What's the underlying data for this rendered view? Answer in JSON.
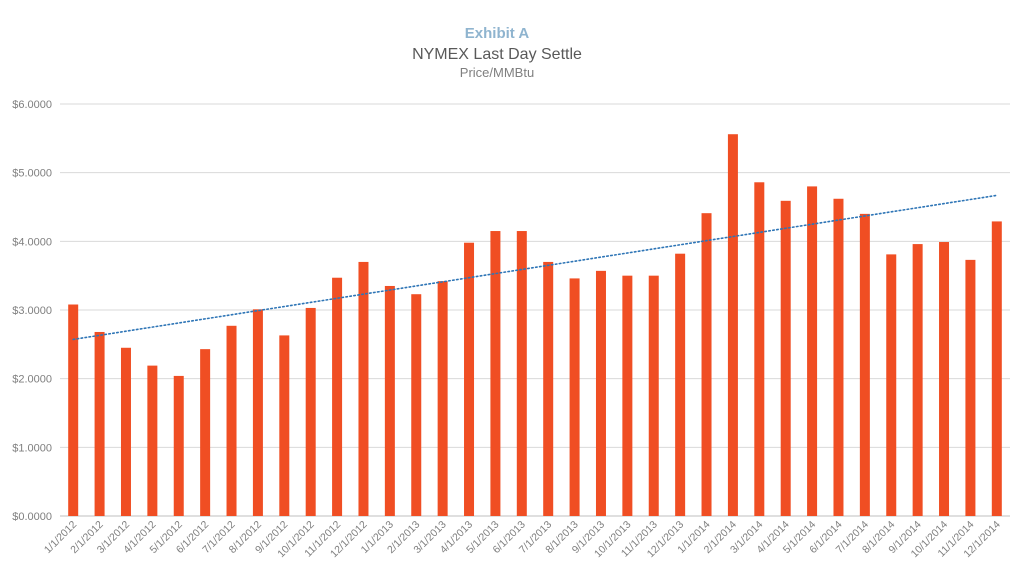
{
  "chart_data": {
    "type": "bar",
    "exhibit": "Exhibit A",
    "title": "NYMEX Last Day Settle",
    "subtitle": "Price/MMBtu",
    "bar_color": "#f04e23",
    "trendline_color": "#2e75b6",
    "trendline": "linear",
    "grid": true,
    "legend": "none",
    "ylim": [
      0,
      6
    ],
    "y_ticks": [
      "$0.0000",
      "$1.0000",
      "$2.0000",
      "$3.0000",
      "$4.0000",
      "$5.0000",
      "$6.0000"
    ],
    "categories": [
      "1/1/2012",
      "2/1/2012",
      "3/1/2012",
      "4/1/2012",
      "5/1/2012",
      "6/1/2012",
      "7/1/2012",
      "8/1/2012",
      "9/1/2012",
      "10/1/2012",
      "11/1/2012",
      "12/1/2012",
      "1/1/2013",
      "2/1/2013",
      "3/1/2013",
      "4/1/2013",
      "5/1/2013",
      "6/1/2013",
      "7/1/2013",
      "8/1/2013",
      "9/1/2013",
      "10/1/2013",
      "11/1/2013",
      "12/1/2013",
      "1/1/2014",
      "2/1/2014",
      "3/1/2014",
      "4/1/2014",
      "5/1/2014",
      "6/1/2014",
      "7/1/2014",
      "8/1/2014",
      "9/1/2014",
      "10/1/2014",
      "11/1/2014",
      "12/1/2014"
    ],
    "values": [
      3.08,
      2.68,
      2.45,
      2.19,
      2.04,
      2.43,
      2.77,
      3.01,
      2.63,
      3.03,
      3.47,
      3.7,
      3.35,
      3.23,
      3.42,
      3.98,
      4.15,
      4.15,
      3.7,
      3.46,
      3.57,
      3.5,
      3.5,
      3.82,
      4.41,
      5.56,
      4.86,
      4.59,
      4.8,
      4.62,
      4.4,
      3.81,
      3.96,
      3.99,
      3.73,
      4.29
    ]
  }
}
